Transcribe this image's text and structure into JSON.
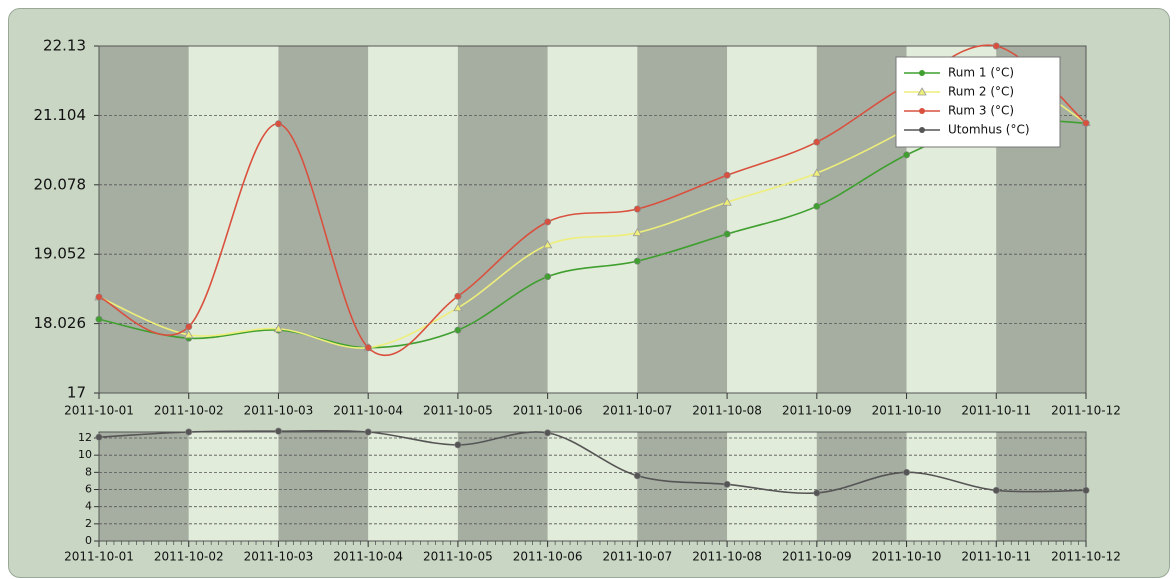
{
  "chart_data": [
    {
      "type": "line",
      "categories": [
        "2011-10-01",
        "2011-10-02",
        "2011-10-03",
        "2011-10-04",
        "2011-10-05",
        "2011-10-06",
        "2011-10-07",
        "2011-10-08",
        "2011-10-09",
        "2011-10-10",
        "2011-10-11",
        "2011-10-12"
      ],
      "series": [
        {
          "name": "Rum 1 (°C)",
          "color": "#3f9f2f",
          "marker": "circle",
          "values": [
            18.09,
            17.81,
            17.93,
            17.67,
            17.93,
            18.72,
            18.95,
            19.35,
            19.76,
            20.52,
            21.01,
            20.99
          ]
        },
        {
          "name": "Rum 2 (°C)",
          "color": "#eeee7a",
          "marker": "triangle",
          "values": [
            18.42,
            17.86,
            17.95,
            17.67,
            18.26,
            19.19,
            19.37,
            19.82,
            20.25,
            20.9,
            21.7,
            21.0
          ]
        },
        {
          "name": "Rum 3 (°C)",
          "color": "#d9503e",
          "marker": "circle",
          "values": [
            18.42,
            17.98,
            20.98,
            17.67,
            18.43,
            19.53,
            19.72,
            20.22,
            20.71,
            21.55,
            22.13,
            20.99
          ]
        }
      ],
      "ylim": [
        17,
        22.13
      ],
      "yticks": [
        17,
        18.026,
        19.052,
        20.078,
        21.104,
        22.13
      ],
      "grid": true,
      "legend": "upper right"
    },
    {
      "type": "line",
      "categories": [
        "2011-10-01",
        "2011-10-02",
        "2011-10-03",
        "2011-10-04",
        "2011-10-05",
        "2011-10-06",
        "2011-10-07",
        "2011-10-08",
        "2011-10-09",
        "2011-10-10",
        "2011-10-11",
        "2011-10-12"
      ],
      "series": [
        {
          "name": "Utomhus (°C)",
          "color": "#555555",
          "marker": "circle",
          "values": [
            12.1,
            12.7,
            12.8,
            12.7,
            11.2,
            12.6,
            7.6,
            6.6,
            5.6,
            8.0,
            5.9,
            5.9
          ]
        }
      ],
      "ylim": [
        0,
        12.7
      ],
      "yticks": [
        0,
        2,
        4,
        6,
        8,
        10,
        12
      ],
      "grid": true
    }
  ]
}
